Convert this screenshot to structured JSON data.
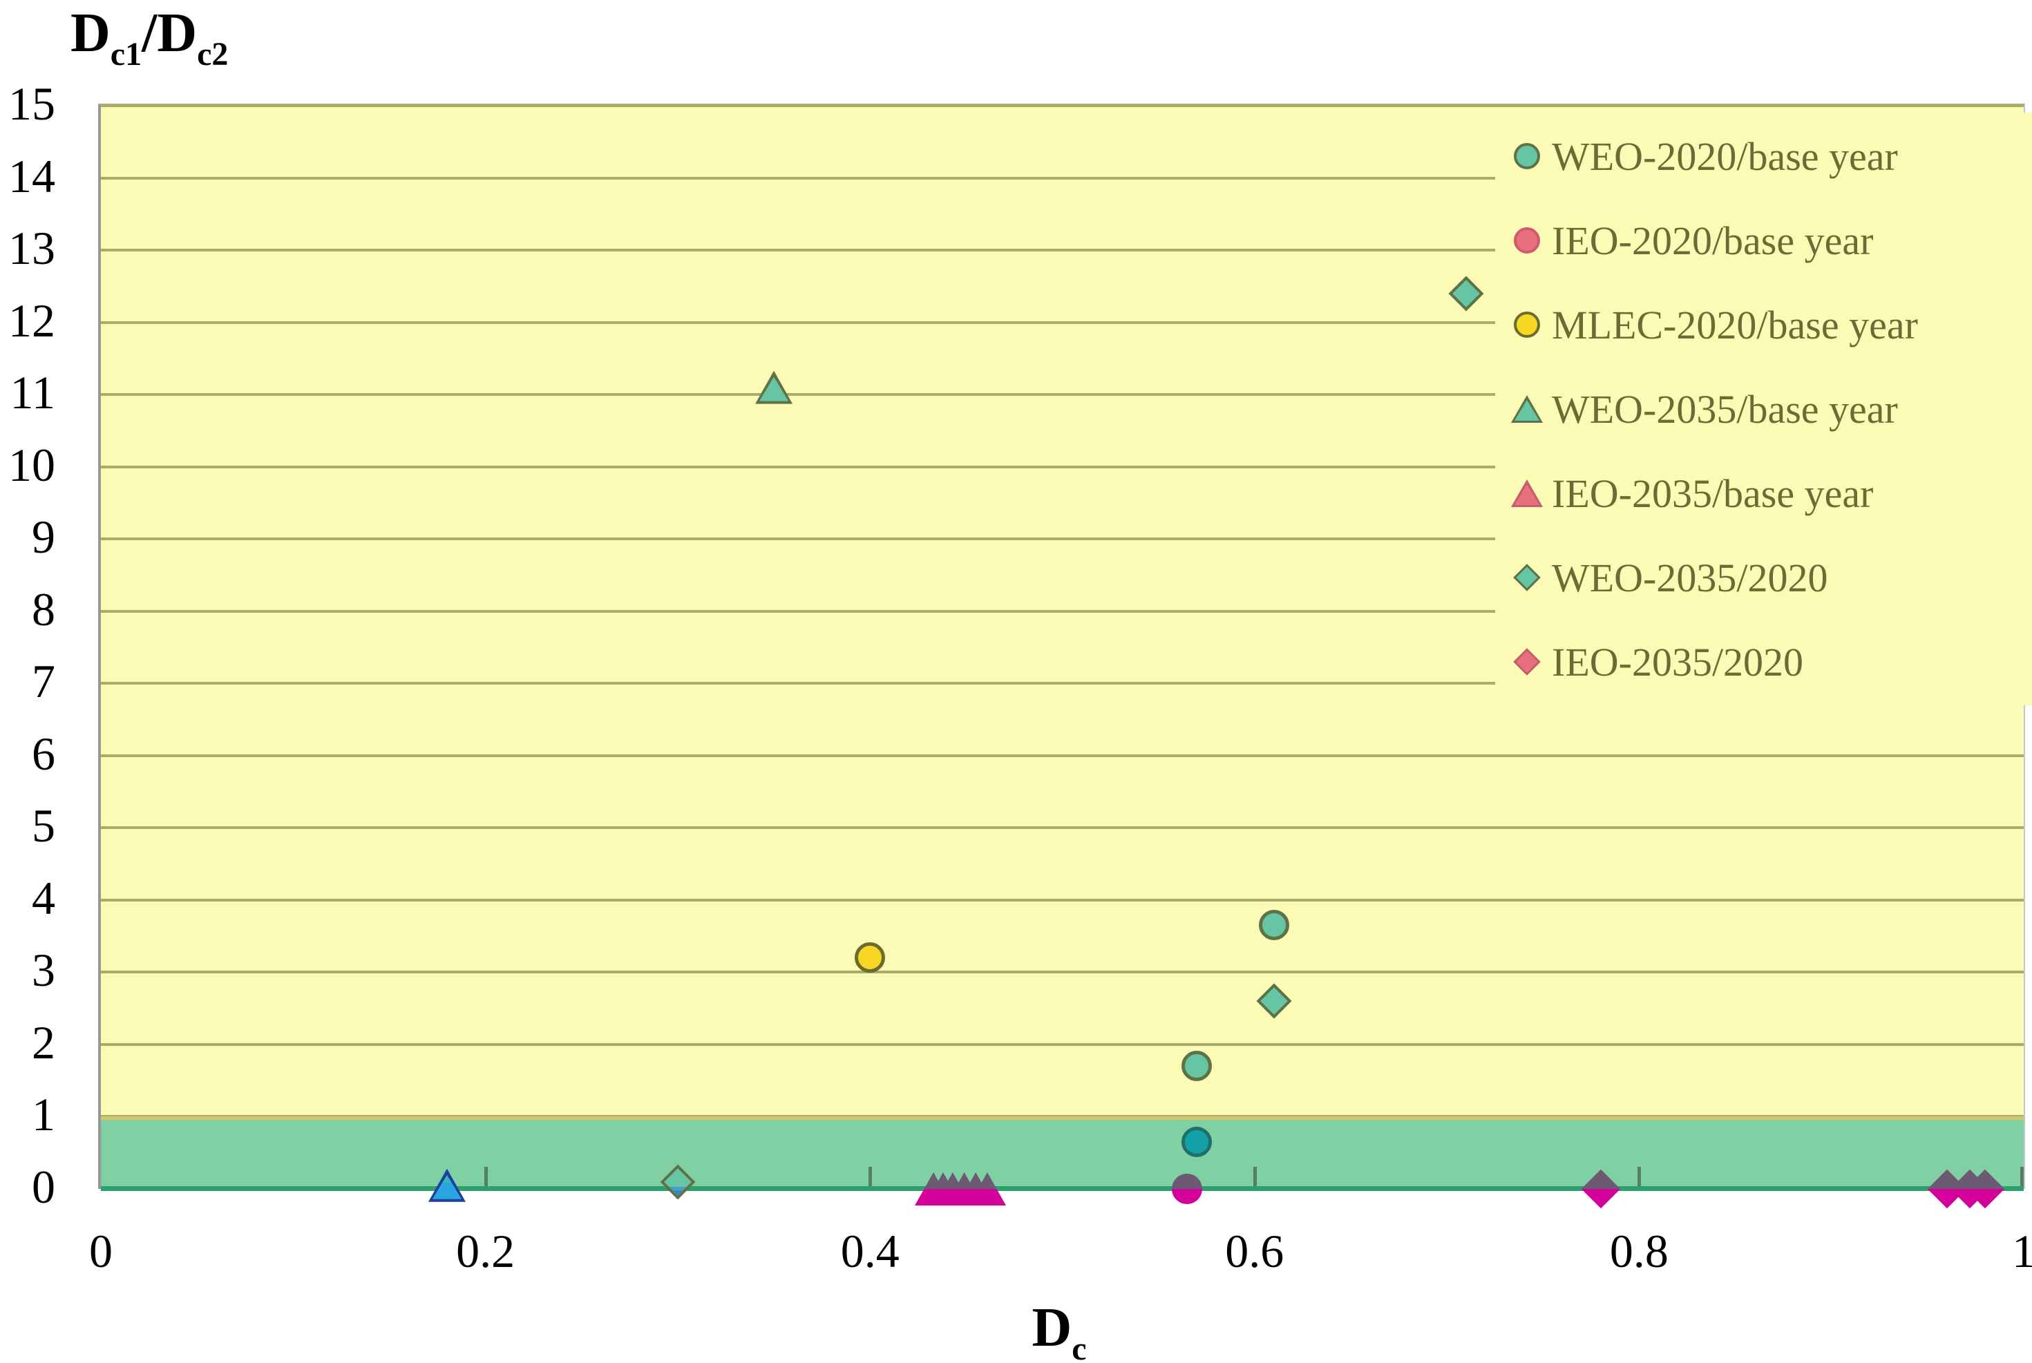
{
  "chart_data": {
    "type": "scatter",
    "title": "",
    "y_axis_title": {
      "base1": "D",
      "sub1": "c1",
      "slash": "/",
      "base2": "D",
      "sub2": "c2"
    },
    "x_axis_title": {
      "base": "D",
      "sub": "c"
    },
    "xlabel": "Dc",
    "ylabel": "Dc1/Dc2",
    "xlim": [
      0,
      1
    ],
    "ylim": [
      0,
      15
    ],
    "x_ticks": [
      {
        "label": "0",
        "value": 0
      },
      {
        "label": "0.2",
        "value": 0.2
      },
      {
        "label": "0.4",
        "value": 0.4
      },
      {
        "label": "0.6",
        "value": 0.6
      },
      {
        "label": "0.8",
        "value": 0.8
      },
      {
        "label": "1",
        "value": 1
      }
    ],
    "y_tick_labels": [
      "0",
      "1",
      "2",
      "3",
      "4",
      "5",
      "6",
      "7",
      "8",
      "9",
      "10",
      "11",
      "12",
      "13",
      "14",
      "15"
    ],
    "grid": "horizontal",
    "legend_position": "top-right-inside",
    "colors": {
      "plot_background": "#FBFBB5",
      "gridline": "#ABAB66",
      "band_fill": "#7FD0A3",
      "band_top_line": "#D2C96B",
      "axis_baseline_green": "#2EA06A",
      "axis_line_grey": "#969696",
      "teal": "#66C6A3",
      "teal_border": "#5F7247",
      "dark_teal": "#12A1A6",
      "yellow": "#F7D723",
      "yellow_border": "#6B6B2E",
      "magenta": "#D4009B",
      "magenta_shaded_top": "#6C5A75",
      "salmon_legend": "#E8707E",
      "blue": "#2AA7E1",
      "blue_border": "#1C3FA0",
      "legend_text": "#6B6B35"
    },
    "band": {
      "from": 0,
      "to": 1
    },
    "series": [
      {
        "name": "WEO-2020/base year",
        "shape": "circle",
        "color": "#66C6A3",
        "border": "#5F7247",
        "legend_color": "#66C6A3",
        "legend_border": "#5F7247",
        "points": [
          {
            "x": 0.61,
            "y": 3.65
          },
          {
            "x": 0.57,
            "y": 1.7
          },
          {
            "x": 0.57,
            "y": 0.65,
            "variant": "dark-teal"
          }
        ]
      },
      {
        "name": "IEO-2020/base year",
        "shape": "circle",
        "color": "#D4009B",
        "legend_color": "#E8707E",
        "legend_border": "#CF5A6E",
        "points": [
          {
            "x": 0.565,
            "y": 0,
            "variant": "two-tone"
          }
        ]
      },
      {
        "name": "MLEC-2020/base year",
        "shape": "circle",
        "color": "#F7D723",
        "border": "#6B6B2E",
        "legend_color": "#F7D723",
        "legend_border": "#6B6B2E",
        "points": [
          {
            "x": 0.4,
            "y": 3.2
          }
        ]
      },
      {
        "name": "WEO-2035/base year",
        "shape": "triangle",
        "color": "#66C6A3",
        "border": "#5F7247",
        "legend_color": "#66C6A3",
        "legend_border": "#5F7247",
        "points": [
          {
            "x": 0.35,
            "y": 11.1
          },
          {
            "x": 0.18,
            "y": 0.05,
            "variant": "blue"
          }
        ]
      },
      {
        "name": "IEO-2035/base year",
        "shape": "triangle",
        "color": "#D4009B",
        "legend_color": "#E8707E",
        "legend_border": "#C25E6E",
        "points": [
          {
            "x": 0.433,
            "y": 0,
            "variant": "two-tone"
          },
          {
            "x": 0.438,
            "y": 0,
            "variant": "two-tone"
          },
          {
            "x": 0.443,
            "y": 0,
            "variant": "two-tone"
          },
          {
            "x": 0.449,
            "y": 0,
            "variant": "two-tone"
          },
          {
            "x": 0.455,
            "y": 0,
            "variant": "two-tone"
          },
          {
            "x": 0.461,
            "y": 0,
            "variant": "two-tone"
          }
        ]
      },
      {
        "name": "WEO-2035/2020",
        "shape": "diamond",
        "color": "#66C6A3",
        "border": "#5F7247",
        "legend_color": "#66C6A3",
        "legend_border": "#5F7247",
        "points": [
          {
            "x": 0.71,
            "y": 12.4
          },
          {
            "x": 0.61,
            "y": 2.6
          },
          {
            "x": 0.3,
            "y": 0.1,
            "variant": "blue-tip"
          }
        ]
      },
      {
        "name": "IEO-2035/2020",
        "shape": "diamond",
        "color": "#D4009B",
        "legend_color": "#E8707E",
        "legend_border": "#C25E6E",
        "points": [
          {
            "x": 0.78,
            "y": 0,
            "variant": "two-tone"
          },
          {
            "x": 0.96,
            "y": 0,
            "variant": "two-tone"
          },
          {
            "x": 0.972,
            "y": 0,
            "variant": "two-tone"
          },
          {
            "x": 0.98,
            "y": 0,
            "variant": "two-tone"
          }
        ]
      }
    ]
  }
}
